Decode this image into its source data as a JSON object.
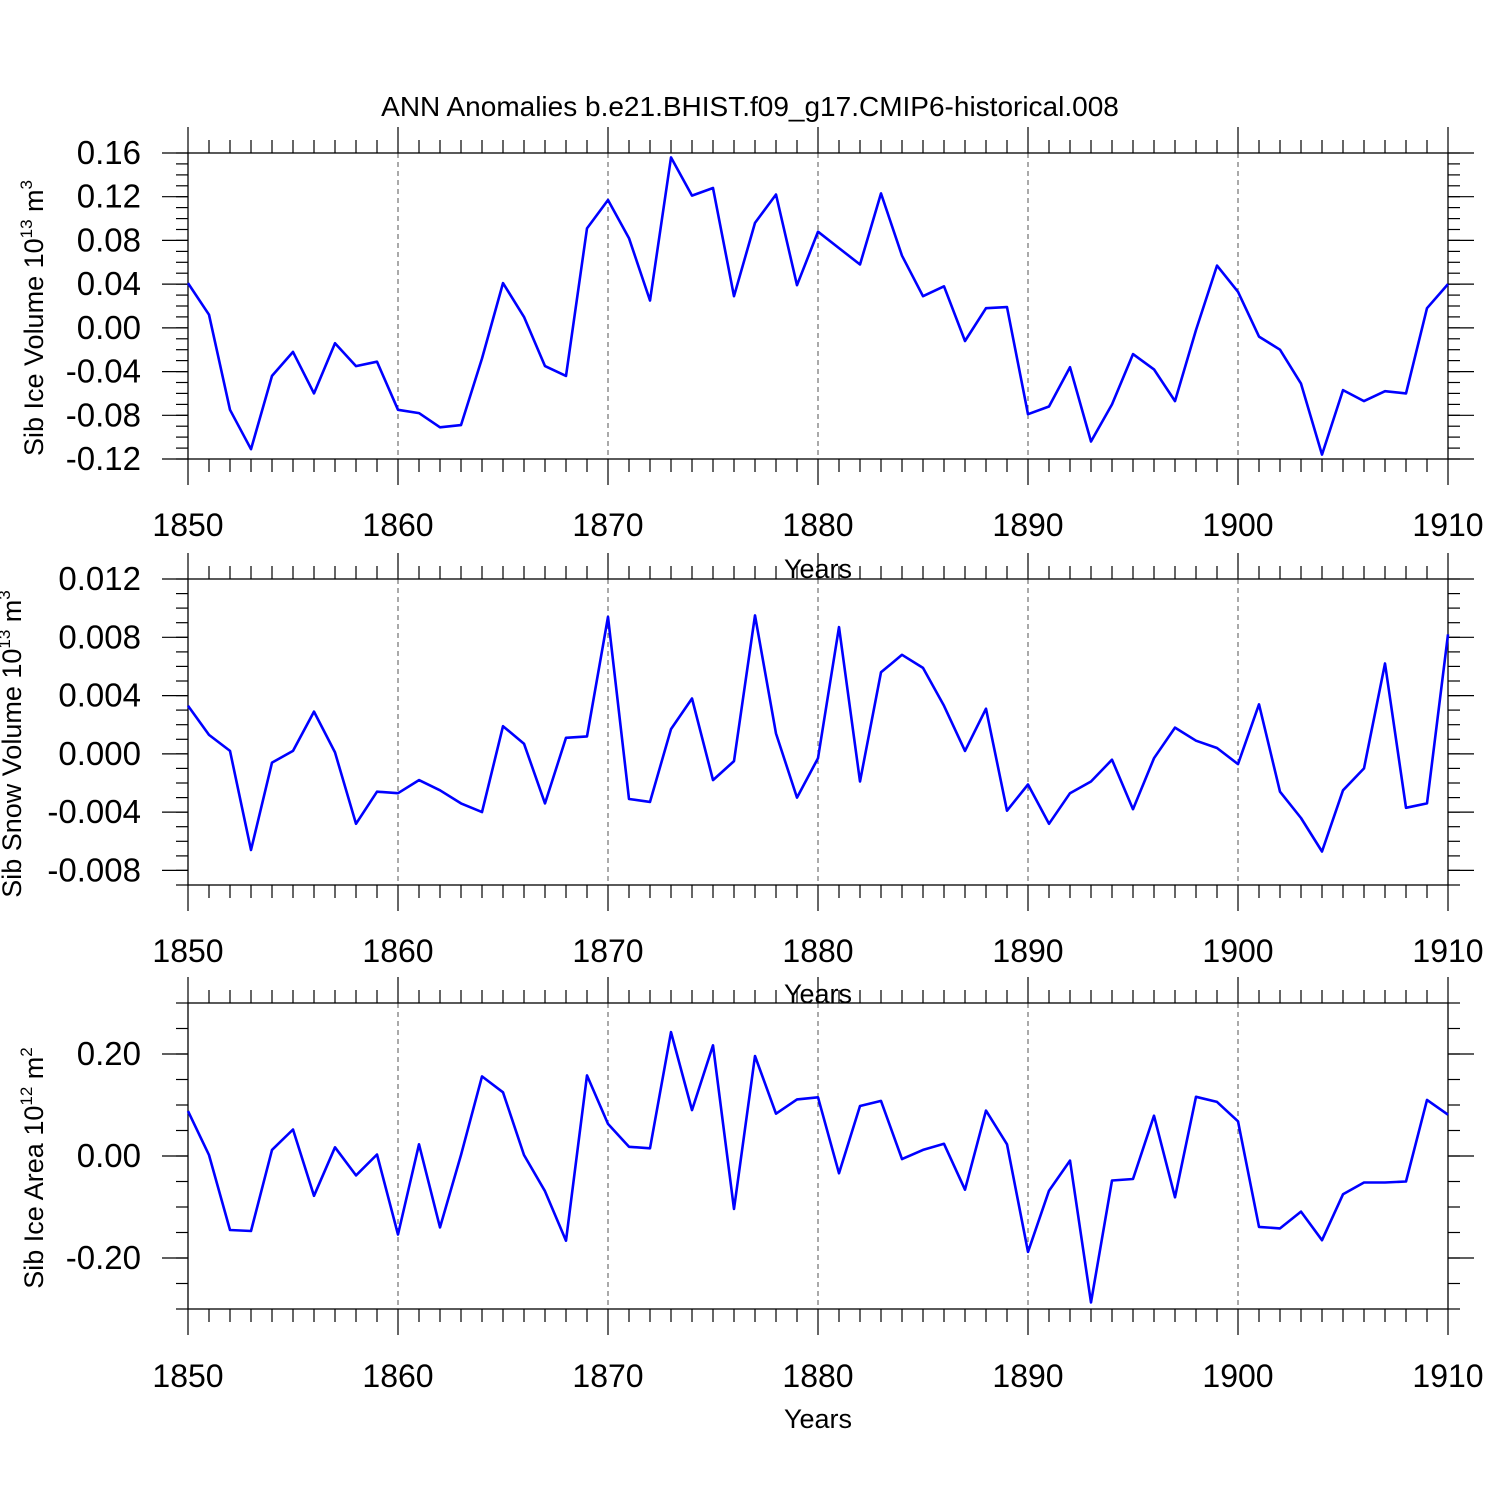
{
  "title": "ANN Anomalies b.e21.BHIST.f09_g17.CMIP6-historical.008",
  "chart_data": [
    {
      "type": "line",
      "name": "sib-ice-volume",
      "ylabel": "Sib Ice Volume 10",
      "ylabel_exp": "13",
      "ylabel_unit": "m",
      "ylabel_unit_exp": "3",
      "xlabel": "Years",
      "xlim": [
        1850,
        1910
      ],
      "ylim": [
        -0.12,
        0.16
      ],
      "yticks": [
        -0.12,
        -0.08,
        -0.04,
        0.0,
        0.04,
        0.08,
        0.12,
        0.16
      ],
      "ytick_labels": [
        "-0.12",
        "-0.08",
        "-0.04",
        "0.00",
        "0.04",
        "0.08",
        "0.12",
        "0.16"
      ],
      "yminor_step": 0.01,
      "xticks": [
        1850,
        1860,
        1870,
        1880,
        1890,
        1900,
        1910
      ],
      "xtick_labels": [
        "1850",
        "1860",
        "1870",
        "1880",
        "1890",
        "1900",
        "1910"
      ],
      "grid": "dashed vertical at major x ticks",
      "series": [
        {
          "name": "Sib Ice Volume",
          "color": "#0000ff",
          "x": [
            1850,
            1851,
            1852,
            1853,
            1854,
            1855,
            1856,
            1857,
            1858,
            1859,
            1860,
            1861,
            1862,
            1863,
            1864,
            1865,
            1866,
            1867,
            1868,
            1869,
            1870,
            1871,
            1872,
            1873,
            1874,
            1875,
            1876,
            1877,
            1878,
            1879,
            1880,
            1881,
            1882,
            1883,
            1884,
            1885,
            1886,
            1887,
            1888,
            1889,
            1890,
            1891,
            1892,
            1893,
            1894,
            1895,
            1896,
            1897,
            1898,
            1899,
            1900,
            1901,
            1902,
            1903,
            1904,
            1905,
            1906,
            1907,
            1908,
            1909,
            1910
          ],
          "values": [
            0.041,
            0.012,
            -0.075,
            -0.111,
            -0.044,
            -0.022,
            -0.06,
            -0.014,
            -0.035,
            -0.031,
            -0.075,
            -0.078,
            -0.091,
            -0.089,
            -0.028,
            0.041,
            0.01,
            -0.035,
            -0.044,
            0.091,
            0.117,
            0.082,
            0.025,
            0.156,
            0.121,
            0.128,
            0.029,
            0.096,
            0.122,
            0.039,
            0.088,
            0.073,
            0.058,
            0.123,
            0.066,
            0.029,
            0.038,
            -0.012,
            0.018,
            0.019,
            -0.079,
            -0.072,
            -0.036,
            -0.104,
            -0.07,
            -0.024,
            -0.038,
            -0.067,
            -0.002,
            0.057,
            0.033,
            -0.008,
            -0.02,
            -0.051,
            -0.116,
            -0.057,
            -0.067,
            -0.058,
            -0.06,
            0.018,
            0.04
          ]
        }
      ]
    },
    {
      "type": "line",
      "name": "sib-snow-volume",
      "ylabel": "Sib Snow Volume 10",
      "ylabel_exp": "13",
      "ylabel_unit": "m",
      "ylabel_unit_exp": "3",
      "xlabel": "Years",
      "xlim": [
        1850,
        1910
      ],
      "ylim": [
        -0.009,
        0.012
      ],
      "yticks": [
        -0.008,
        -0.004,
        0.0,
        0.004,
        0.008,
        0.012
      ],
      "ytick_labels": [
        "-0.008",
        "-0.004",
        "0.000",
        "0.004",
        "0.008",
        "0.012"
      ],
      "yminor_step": 0.001,
      "xticks": [
        1850,
        1860,
        1870,
        1880,
        1890,
        1900,
        1910
      ],
      "xtick_labels": [
        "1850",
        "1860",
        "1870",
        "1880",
        "1890",
        "1900",
        "1910"
      ],
      "grid": "dashed vertical at major x ticks",
      "series": [
        {
          "name": "Sib Snow Volume",
          "color": "#0000ff",
          "x": [
            1850,
            1851,
            1852,
            1853,
            1854,
            1855,
            1856,
            1857,
            1858,
            1859,
            1860,
            1861,
            1862,
            1863,
            1864,
            1865,
            1866,
            1867,
            1868,
            1869,
            1870,
            1871,
            1872,
            1873,
            1874,
            1875,
            1876,
            1877,
            1878,
            1879,
            1880,
            1881,
            1882,
            1883,
            1884,
            1885,
            1886,
            1887,
            1888,
            1889,
            1890,
            1891,
            1892,
            1893,
            1894,
            1895,
            1896,
            1897,
            1898,
            1899,
            1900,
            1901,
            1902,
            1903,
            1904,
            1905,
            1906,
            1907,
            1908,
            1909,
            1910
          ],
          "values": [
            0.0033,
            0.0013,
            0.0002,
            -0.0066,
            -0.0006,
            0.0002,
            0.0029,
            0.0001,
            -0.0048,
            -0.0026,
            -0.0027,
            -0.0018,
            -0.0025,
            -0.0034,
            -0.004,
            0.0019,
            0.0007,
            -0.0034,
            0.0011,
            0.0012,
            0.0094,
            -0.0031,
            -0.0033,
            0.0017,
            0.0038,
            -0.0018,
            -0.0005,
            0.0095,
            0.0014,
            -0.003,
            -0.0003,
            0.0087,
            -0.0019,
            0.0056,
            0.0068,
            0.0059,
            0.0033,
            0.0002,
            0.0031,
            -0.0039,
            -0.0021,
            -0.0048,
            -0.0027,
            -0.0019,
            -0.0004,
            -0.0038,
            -0.0003,
            0.0018,
            0.0009,
            0.0004,
            -0.0007,
            0.0034,
            -0.0026,
            -0.0044,
            -0.0067,
            -0.0025,
            -0.001,
            0.0062,
            -0.0037,
            -0.0034,
            0.0082
          ]
        }
      ]
    },
    {
      "type": "line",
      "name": "sib-ice-area",
      "ylabel": "Sib Ice Area 10",
      "ylabel_exp": "12",
      "ylabel_unit": "m",
      "ylabel_unit_exp": "2",
      "xlabel": "Years",
      "xlim": [
        1850,
        1910
      ],
      "ylim": [
        -0.3,
        0.3
      ],
      "yticks": [
        -0.2,
        0.0,
        0.2
      ],
      "ytick_labels": [
        "-0.20",
        "0.00",
        "0.20"
      ],
      "yminor_step": 0.05,
      "xticks": [
        1850,
        1860,
        1870,
        1880,
        1890,
        1900,
        1910
      ],
      "xtick_labels": [
        "1850",
        "1860",
        "1870",
        "1880",
        "1890",
        "1900",
        "1910"
      ],
      "grid": "dashed vertical at major x ticks",
      "series": [
        {
          "name": "Sib Ice Area",
          "color": "#0000ff",
          "x": [
            1850,
            1851,
            1852,
            1853,
            1854,
            1855,
            1856,
            1857,
            1858,
            1859,
            1860,
            1861,
            1862,
            1863,
            1864,
            1865,
            1866,
            1867,
            1868,
            1869,
            1870,
            1871,
            1872,
            1873,
            1874,
            1875,
            1876,
            1877,
            1878,
            1879,
            1880,
            1881,
            1882,
            1883,
            1884,
            1885,
            1886,
            1887,
            1888,
            1889,
            1890,
            1891,
            1892,
            1893,
            1894,
            1895,
            1896,
            1897,
            1898,
            1899,
            1900,
            1901,
            1902,
            1903,
            1904,
            1905,
            1906,
            1907,
            1908,
            1909,
            1910
          ],
          "values": [
            0.088,
            0.002,
            -0.145,
            -0.147,
            0.012,
            0.052,
            -0.078,
            0.017,
            -0.038,
            0.003,
            -0.154,
            0.023,
            -0.14,
            0.002,
            0.156,
            0.125,
            0.002,
            -0.069,
            -0.166,
            0.158,
            0.063,
            0.018,
            0.015,
            0.243,
            0.09,
            0.217,
            -0.104,
            0.196,
            0.083,
            0.111,
            0.115,
            -0.034,
            0.098,
            0.108,
            -0.006,
            0.012,
            0.024,
            -0.066,
            0.089,
            0.023,
            -0.188,
            -0.068,
            -0.009,
            -0.287,
            -0.048,
            -0.045,
            0.079,
            -0.081,
            0.116,
            0.106,
            0.068,
            -0.139,
            -0.142,
            -0.109,
            -0.165,
            -0.075,
            -0.052,
            -0.052,
            -0.05,
            0.11,
            0.081
          ]
        }
      ]
    }
  ]
}
